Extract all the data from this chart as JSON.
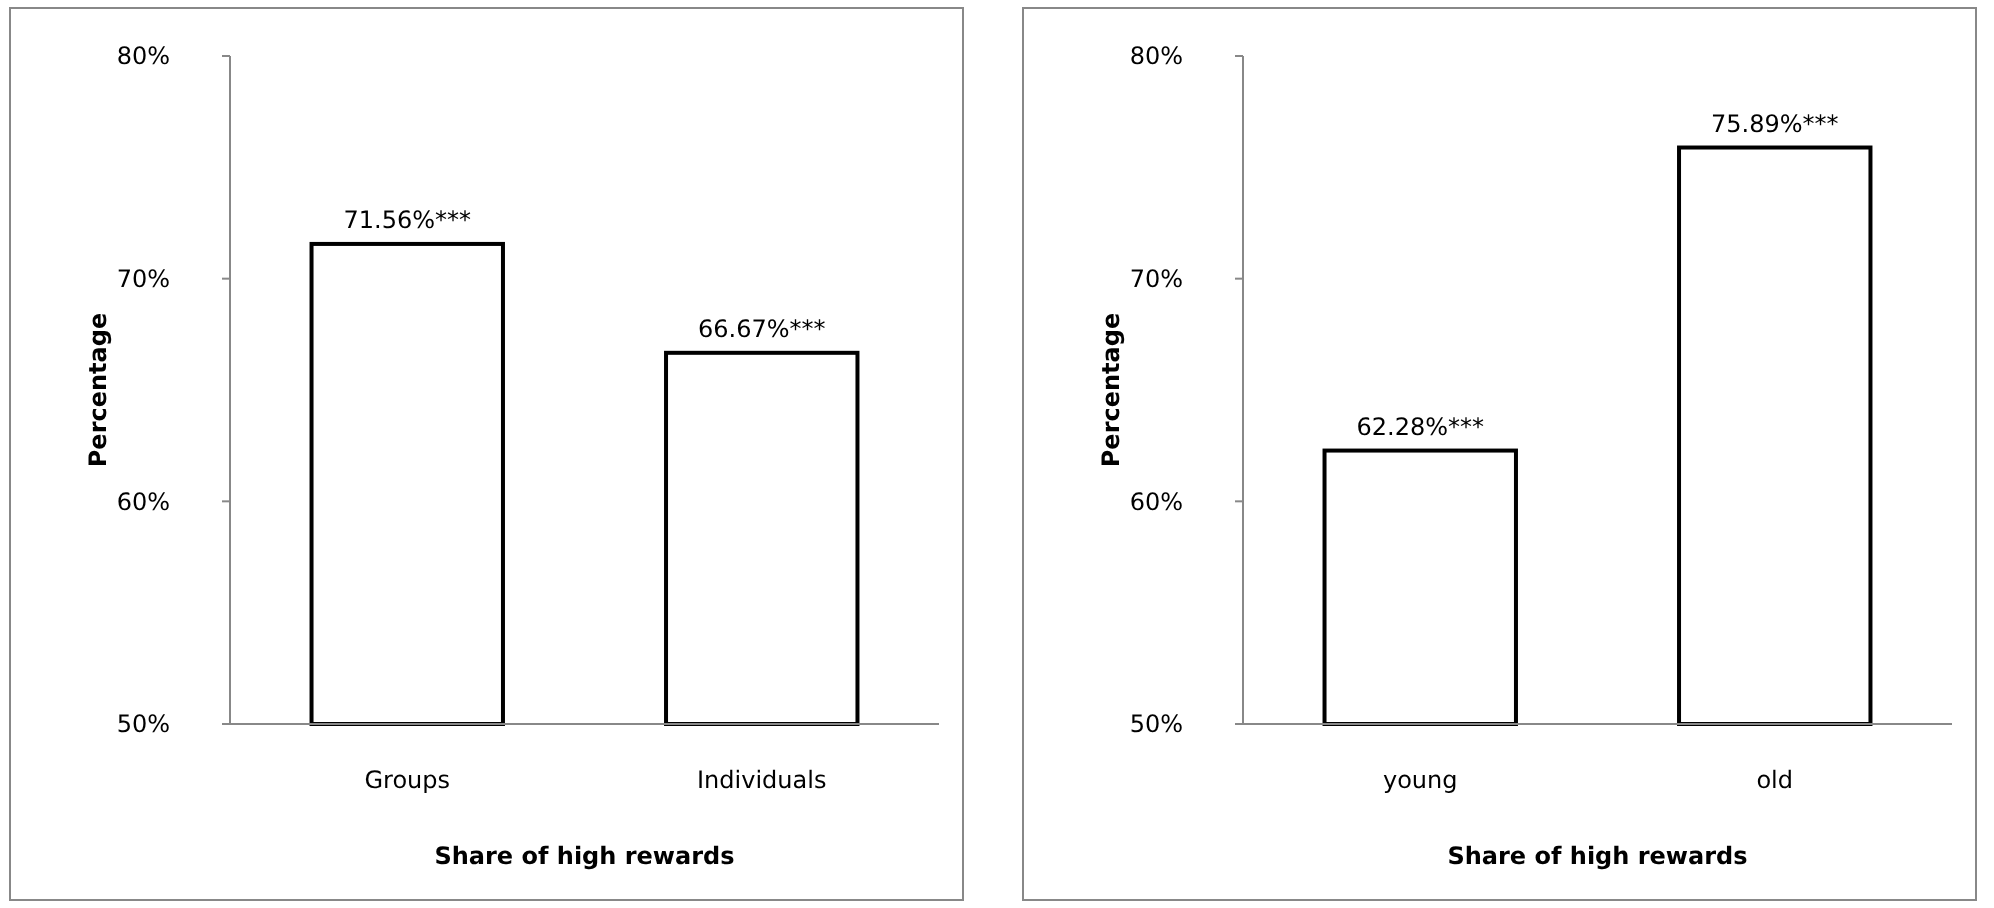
{
  "chart_data": [
    {
      "type": "bar",
      "categories": [
        "Groups",
        "Individuals"
      ],
      "values": [
        71.56,
        66.67
      ],
      "value_labels": [
        "71.56%***",
        "66.67%***"
      ],
      "color": "#ffffff",
      "xlabel": "Share of high rewards",
      "ylabel": "Percentage",
      "ylim": [
        50,
        80
      ],
      "yticks": [
        {
          "value": 50,
          "label": "50%"
        },
        {
          "value": 60,
          "label": "60%"
        },
        {
          "value": 70,
          "label": "70%"
        },
        {
          "value": 80,
          "label": "80%"
        }
      ]
    },
    {
      "type": "bar",
      "categories": [
        "young",
        "old"
      ],
      "values": [
        62.28,
        75.89
      ],
      "value_labels": [
        "62.28%***",
        "75.89%***"
      ],
      "color": "#ffffff",
      "xlabel": "Share of high rewards",
      "ylabel": "Percentage",
      "ylim": [
        50,
        80
      ],
      "yticks": [
        {
          "value": 50,
          "label": "50%"
        },
        {
          "value": 60,
          "label": "60%"
        },
        {
          "value": 70,
          "label": "70%"
        },
        {
          "value": 80,
          "label": "80%"
        }
      ]
    }
  ]
}
